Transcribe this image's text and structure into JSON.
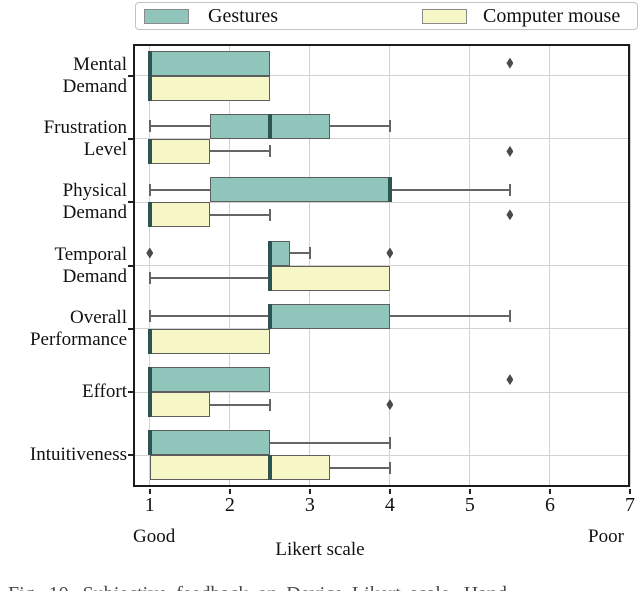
{
  "legend": {
    "items": [
      {
        "label": "Gestures"
      },
      {
        "label": "Computer mouse"
      }
    ]
  },
  "caption": {
    "clipped_text": "Fig. 10. Subjective feedback on Device Likert scale. Hand"
  },
  "chart_data": {
    "type": "boxplot",
    "orientation": "horizontal",
    "title": "",
    "xlabel": "Likert scale",
    "x_left_annotation": "Good",
    "x_right_annotation": "Poor",
    "x_ticks": [
      "1",
      "2",
      "3",
      "4",
      "5",
      "6",
      "7"
    ],
    "xlim": [
      0.79,
      7
    ],
    "grid": true,
    "legend_position": "top",
    "categories": [
      "Mental Demand",
      "Frustration Level",
      "Physical Demand",
      "Temporal Demand",
      "Overall Performance",
      "Effort",
      "Intuitiveness"
    ],
    "categories_lines": [
      [
        "Mental",
        "Demand"
      ],
      [
        "Frustration",
        "Level"
      ],
      [
        "Physical",
        "Demand"
      ],
      [
        "Temporal",
        "Demand"
      ],
      [
        "Overall",
        "Performance"
      ],
      [
        "Effort"
      ],
      [
        "Intuitiveness"
      ]
    ],
    "series": [
      {
        "name": "Gestures",
        "color": "#8fc5ba",
        "boxes": [
          {
            "whislo": 1,
            "q1": 1,
            "med": 1,
            "q3": 2.5,
            "whishi": 2.5,
            "outliers": [
              5.5
            ]
          },
          {
            "whislo": 1,
            "q1": 1.75,
            "med": 2.5,
            "q3": 3.25,
            "whishi": 4,
            "outliers": []
          },
          {
            "whislo": 1,
            "q1": 1.75,
            "med": 4,
            "q3": 4,
            "whishi": 5.5,
            "outliers": []
          },
          {
            "whislo": 2.5,
            "q1": 2.5,
            "med": 2.5,
            "q3": 2.75,
            "whishi": 3,
            "outliers": [
              1,
              4
            ]
          },
          {
            "whislo": 1,
            "q1": 2.5,
            "med": 2.5,
            "q3": 4,
            "whishi": 5.5,
            "outliers": []
          },
          {
            "whislo": 1,
            "q1": 1,
            "med": 1,
            "q3": 2.5,
            "whishi": 2.5,
            "outliers": [
              5.5
            ]
          },
          {
            "whislo": 1,
            "q1": 1,
            "med": 1,
            "q3": 2.5,
            "whishi": 4,
            "outliers": []
          }
        ]
      },
      {
        "name": "Computer mouse",
        "color": "#f7f6c6",
        "boxes": [
          {
            "whislo": 1,
            "q1": 1,
            "med": 1,
            "q3": 2.5,
            "whishi": 2.5,
            "outliers": []
          },
          {
            "whislo": 1,
            "q1": 1,
            "med": 1,
            "q3": 1.75,
            "whishi": 2.5,
            "outliers": [
              5.5
            ]
          },
          {
            "whislo": 1,
            "q1": 1,
            "med": 1,
            "q3": 1.75,
            "whishi": 2.5,
            "outliers": [
              5.5
            ]
          },
          {
            "whislo": 1,
            "q1": 2.5,
            "med": 2.5,
            "q3": 4,
            "whishi": 4,
            "outliers": []
          },
          {
            "whislo": 1,
            "q1": 1,
            "med": 1,
            "q3": 2.5,
            "whishi": 2.5,
            "outliers": []
          },
          {
            "whislo": 1,
            "q1": 1,
            "med": 1,
            "q3": 1.75,
            "whishi": 2.5,
            "outliers": [
              4
            ]
          },
          {
            "whislo": 1,
            "q1": 1,
            "med": 2.5,
            "q3": 3.25,
            "whishi": 4,
            "outliers": []
          }
        ]
      }
    ],
    "style": {
      "box_edge_color": "#5d5d5d",
      "median_color": "#2e5353",
      "whisker_color": "#666666",
      "outlier_color": "#4a4a4a",
      "grid_color": "#d2d2d2",
      "frame_color": "#1c1c1c"
    }
  }
}
